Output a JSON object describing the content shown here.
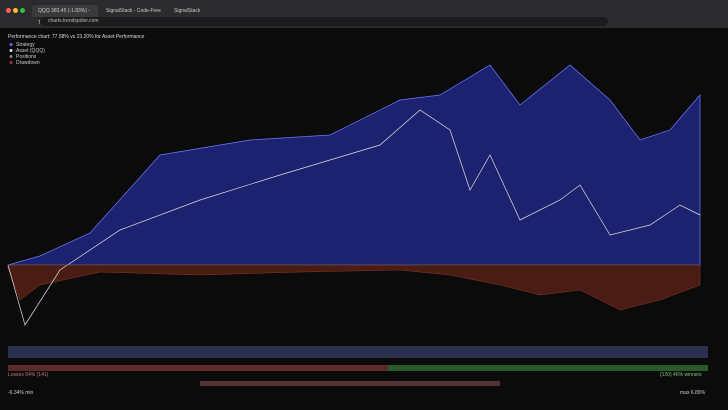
{
  "browser": {
    "tabs": [
      "QQQ 383.45 (-1.83%) - Tre...",
      "SignalStack - Code-Free Stra...",
      "SignalStack"
    ],
    "url": "charts.trendspider.com"
  },
  "chart": {
    "title": "Performance chart: 77.58% vs 23.20% for Asset Performance",
    "legend": [
      "Strategy",
      "Asset (QQQ)",
      "Positions",
      "Drawdown"
    ]
  },
  "footer": {
    "losses": "Losses 54% (141)",
    "winners": "(120) 46% winners",
    "min": "-6.34% min",
    "max": "max 6.89%"
  }
}
